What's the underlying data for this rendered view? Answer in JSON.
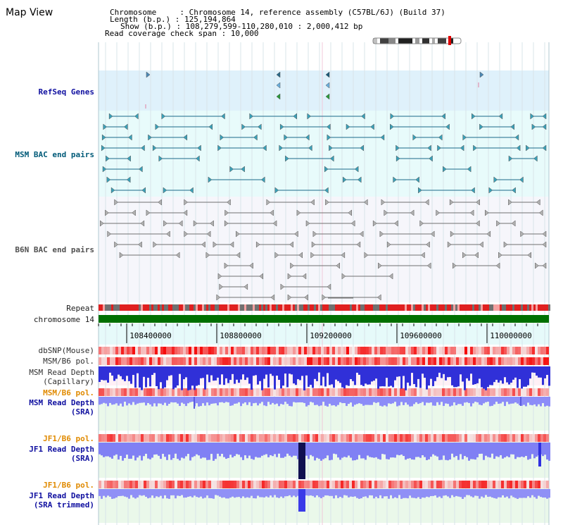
{
  "page": {
    "title": "Map View"
  },
  "info": {
    "chromosome_line": "Chromosome     : Chromosome 14, reference assembly (C57BL/6J) (Build 37)",
    "length_line": "Length (b.p.) : 125,194,864",
    "show_line": "Show (b.p.) : 108,279,599-110,280,010 : 2,000,412 bp",
    "coverage_line": "Read coverage check span : 10,000"
  },
  "tracks": {
    "refseq": "RefSeq Genes",
    "msm_bac": "MSM BAC end pairs",
    "b6n_bac": "B6N BAC end pairs",
    "repeat": "Repeat",
    "chromosome": "chromosome 14",
    "dbsnp": "dbSNP(Mouse)",
    "msm_pol": "MSM/B6 pol.",
    "msm_depth_cap_1": "MSM Read Depth",
    "msm_depth_cap_2": "(Capillary)",
    "msm_pol2": "MSM/B6 pol.",
    "msm_depth_sra_1": "MSM Read Depth",
    "msm_depth_sra_2": "(SRA)",
    "jf1_pol": "JF1/B6 pol.",
    "jf1_depth_sra_1": "JF1 Read Depth",
    "jf1_depth_sra_2": "(SRA)",
    "jf1_pol2": "JF1/B6 pol.",
    "jf1_depth_trim_1": "JF1 Read Depth",
    "jf1_depth_trim_2": "(SRA trimmed)"
  },
  "axis": {
    "ticks": [
      "108400000",
      "108800000",
      "109200000",
      "109600000",
      "110000000"
    ]
  },
  "colors": {
    "refseq_bg": "#dff1fb",
    "msm_bg": "#e8fbfb",
    "b6n_bg": "#f6f6fb",
    "chromosome_bar": "#007000",
    "depth_blue": "#2c2cf0",
    "depth_light": "#8c8cf8",
    "pol_red": "#f03030"
  }
}
